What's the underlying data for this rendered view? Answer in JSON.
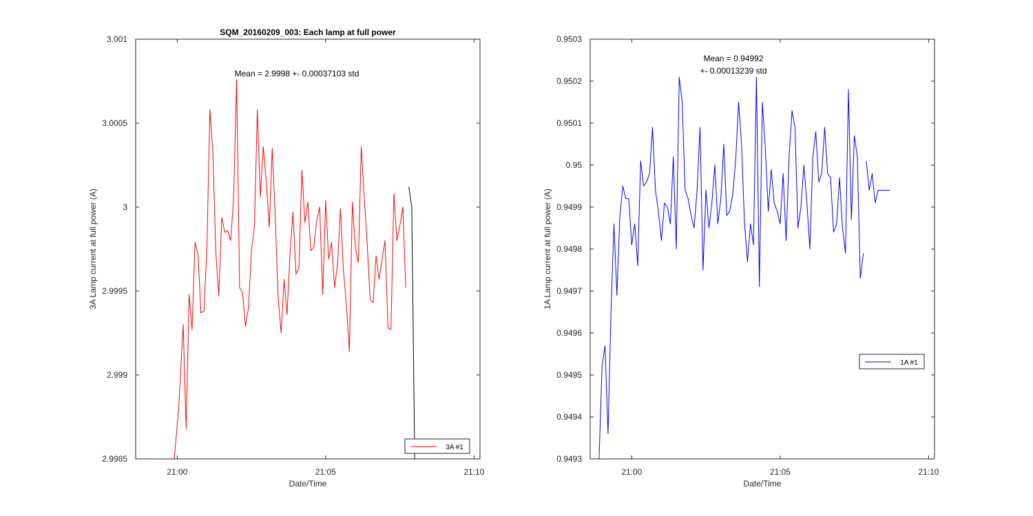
{
  "figure_title": "SQM_20160209_003: Each lamp at full power",
  "chart_data": [
    {
      "type": "line",
      "title": "SQM_20160209_003: Each lamp at full power",
      "xlabel": "Date/Time",
      "ylabel": "3A Lamp current at full power (A)",
      "xlim": [
        -1.4,
        10.2
      ],
      "ylim": [
        2.9985,
        3.001
      ],
      "xticks": [
        0,
        5,
        10
      ],
      "xtick_labels": [
        "21:00",
        "21:05",
        "21:10"
      ],
      "yticks": [
        2.9985,
        2.999,
        2.9995,
        3,
        3.0005,
        3.001
      ],
      "ytick_labels": [
        "2.9985",
        "2.999",
        "2.9995",
        "3",
        "3.0005",
        "3.001"
      ],
      "annotation": [
        "Mean = 2.9998 +- 0.00037103 std"
      ],
      "legend": {
        "label": "3A #1",
        "location": "bottom-right"
      },
      "series": [
        {
          "name": "3A #1",
          "color": "#ff0000",
          "x": [
            -0.1,
            0.05,
            0.2,
            0.3,
            0.4,
            0.5,
            0.6,
            0.7,
            0.8,
            0.9,
            1.0,
            1.1,
            1.2,
            1.3,
            1.4,
            1.5,
            1.6,
            1.7,
            1.8,
            1.9,
            2.0,
            2.1,
            2.2,
            2.3,
            2.4,
            2.5,
            2.6,
            2.7,
            2.8,
            2.9,
            3.0,
            3.1,
            3.2,
            3.3,
            3.4,
            3.5,
            3.6,
            3.7,
            3.8,
            3.9,
            4.0,
            4.1,
            4.2,
            4.3,
            4.4,
            4.5,
            4.6,
            4.7,
            4.8,
            4.9,
            5.0,
            5.1,
            5.2,
            5.3,
            5.4,
            5.5,
            5.6,
            5.7,
            5.8,
            5.9,
            6.0,
            6.1,
            6.2,
            6.3,
            6.4,
            6.5,
            6.6,
            6.7,
            6.8,
            6.9,
            7.0,
            7.1,
            7.2,
            7.3,
            7.4,
            7.5,
            7.6,
            7.7
          ],
          "values": [
            2.9985,
            2.9988,
            2.9993,
            2.99868,
            2.99948,
            2.99927,
            2.99979,
            2.99972,
            2.99937,
            2.99938,
            2.99975,
            3.00058,
            3.00033,
            2.99973,
            2.99947,
            2.99994,
            2.99985,
            2.99986,
            2.9998,
            3.00005,
            3.00076,
            2.99952,
            2.99949,
            2.99929,
            2.9994,
            2.99974,
            2.99988,
            3.00058,
            3.00006,
            3.00036,
            3.00015,
            2.99988,
            3.00035,
            2.99995,
            2.99946,
            2.99925,
            2.99957,
            2.99936,
            2.99972,
            2.99997,
            2.9996,
            2.99964,
            3.00022,
            2.99991,
            3.00003,
            2.99974,
            2.99976,
            2.99992,
            3.0,
            2.99948,
            3.00004,
            2.99969,
            2.99979,
            2.99952,
            2.99966,
            2.99999,
            2.99962,
            2.99942,
            2.99914,
            3.00003,
            2.99976,
            2.99967,
            3.00036,
            3.00006,
            2.99978,
            2.99945,
            2.99943,
            2.99971,
            2.99957,
            2.99969,
            2.9998,
            2.99928,
            2.99927,
            3.00008,
            2.9998,
            2.99989,
            3.0,
            2.99952
          ]
        },
        {
          "name": "",
          "color": "#000000",
          "x": [
            7.8,
            7.9,
            8.0
          ],
          "values": [
            3.00012,
            3.0,
            2.9985
          ]
        }
      ]
    },
    {
      "type": "line",
      "title": "",
      "xlabel": "Date/Time",
      "ylabel": "1A Lamp current at full power (A)",
      "xlim": [
        -1.4,
        10.2
      ],
      "ylim": [
        0.9493,
        0.9503
      ],
      "xticks": [
        0,
        5,
        10
      ],
      "xtick_labels": [
        "21:00",
        "21:05",
        "21:10"
      ],
      "yticks": [
        0.9493,
        0.9494,
        0.9495,
        0.9496,
        0.9497,
        0.9498,
        0.9499,
        0.95,
        0.9501,
        0.9502,
        0.9503
      ],
      "ytick_labels": [
        "0.9493",
        "0.9494",
        "0.9495",
        "0.9496",
        "0.9497",
        "0.9498",
        "0.9499",
        "0.95",
        "0.9501",
        "0.9502",
        "0.9503"
      ],
      "annotation": [
        "Mean = 0.94992",
        "+- 0.00013239 std"
      ],
      "legend": {
        "label": "1A #1",
        "location": "middle-right"
      },
      "series": [
        {
          "name": "1A #1",
          "color": "#0000ff",
          "x": [
            -1.1,
            -1.0,
            -0.9,
            -0.8,
            -0.7,
            -0.6,
            -0.5,
            -0.4,
            -0.3,
            -0.2,
            -0.1,
            0.0,
            0.1,
            0.2,
            0.3,
            0.4,
            0.5,
            0.6,
            0.7,
            0.8,
            0.9,
            1.0,
            1.1,
            1.2,
            1.3,
            1.4,
            1.5,
            1.6,
            1.7,
            1.8,
            1.9,
            2.0,
            2.1,
            2.2,
            2.3,
            2.4,
            2.5,
            2.6,
            2.7,
            2.8,
            2.9,
            3.0,
            3.1,
            3.2,
            3.3,
            3.4,
            3.5,
            3.6,
            3.7,
            3.8,
            3.9,
            4.0,
            4.1,
            4.2,
            4.3,
            4.4,
            4.5,
            4.6,
            4.7,
            4.8,
            4.9,
            5.0,
            5.1,
            5.2,
            5.3,
            5.4,
            5.5,
            5.6,
            5.7,
            5.8,
            5.9,
            6.0,
            6.1,
            6.2,
            6.3,
            6.4,
            6.5,
            6.6,
            6.7,
            6.8,
            6.9,
            7.0,
            7.1,
            7.2,
            7.3,
            7.4,
            7.5,
            7.6,
            7.7,
            7.8
          ],
          "values": [
            0.9493,
            0.94952,
            0.94957,
            0.94936,
            0.94965,
            0.94986,
            0.94969,
            0.94988,
            0.94995,
            0.94992,
            0.94992,
            0.94981,
            0.94986,
            0.94976,
            0.95001,
            0.94995,
            0.94996,
            0.94998,
            0.95009,
            0.94994,
            0.94989,
            0.94982,
            0.94991,
            0.9499,
            0.94986,
            0.95002,
            0.9498,
            0.95021,
            0.95015,
            0.94994,
            0.94992,
            0.94988,
            0.94985,
            0.94994,
            0.95009,
            0.94975,
            0.94994,
            0.94985,
            0.94991,
            0.95,
            0.94986,
            0.94992,
            0.95005,
            0.94988,
            0.94989,
            0.94993,
            0.95001,
            0.95015,
            0.95005,
            0.94986,
            0.94977,
            0.94986,
            0.94981,
            0.95021,
            0.94971,
            0.95015,
            0.95004,
            0.94989,
            0.94999,
            0.94991,
            0.94989,
            0.94986,
            0.94998,
            0.94982,
            0.95002,
            0.95013,
            0.95009,
            0.94985,
            0.9499,
            0.95,
            0.94991,
            0.9498,
            0.95002,
            0.95008,
            0.94996,
            0.94998,
            0.95009,
            0.94998,
            0.94997,
            0.94984,
            0.94986,
            0.94997,
            0.94985,
            0.94979,
            0.95018,
            0.94987,
            0.95007,
            0.95002,
            0.94973,
            0.94979
          ]
        },
        {
          "name": "",
          "color": "#0000ff",
          "x": [
            7.9,
            8.0,
            8.1,
            8.2,
            8.3,
            8.4,
            8.5,
            8.6,
            8.7
          ],
          "values": [
            0.95001,
            0.94994,
            0.94998,
            0.94991,
            0.94994,
            0.94994,
            0.94994,
            0.94994,
            0.94994
          ]
        }
      ]
    }
  ]
}
